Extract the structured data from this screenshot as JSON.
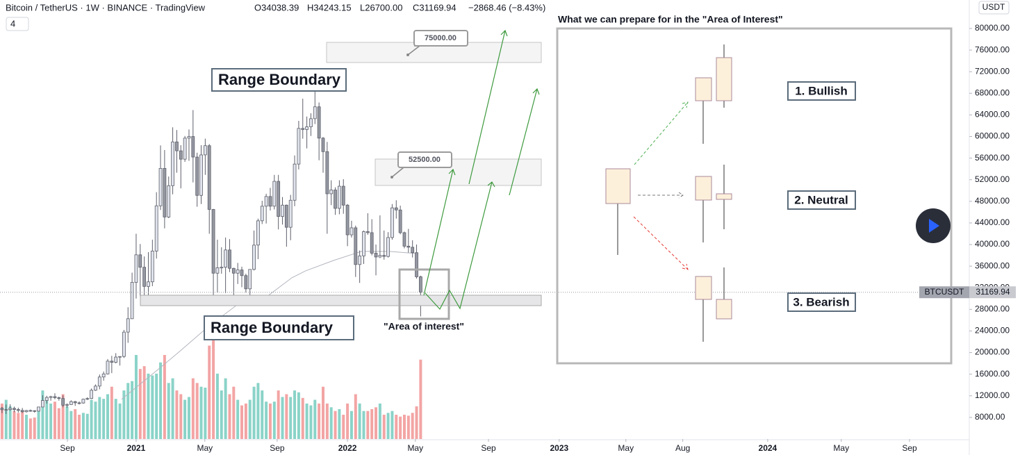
{
  "chart_data": {
    "type": "candlestick",
    "header": {
      "symbol": "Bitcoin / TetherUS · 1W · BINANCE · TradingView",
      "ohlc": [
        "O34038.39",
        "H34243.15",
        "L26700.00",
        "C31169.94"
      ],
      "change": "−2868.46 (−8.43%)",
      "indicators": "4"
    },
    "currency": "USDT",
    "symbol_label": "BTCUSDT",
    "colors": {
      "up": "#e0e3eb",
      "down": "#9598a1",
      "outline": "#5d606b",
      "volume_up": "#8ad3c8",
      "volume_down": "#f3a4a4",
      "ma": "#b2b5be"
    },
    "xlim": [
      0,
      238.5
    ],
    "xticks": [
      {
        "value": 16.6,
        "label": "Sep"
      },
      {
        "value": 33.5,
        "label": "2021"
      },
      {
        "value": 50.4,
        "label": "May"
      },
      {
        "value": 68.2,
        "label": "Sep"
      },
      {
        "value": 85.5,
        "label": "2022"
      },
      {
        "value": 102.2,
        "label": "May"
      },
      {
        "value": 120.2,
        "label": "Sep"
      },
      {
        "value": 137.6,
        "label": "2023"
      },
      {
        "value": 154,
        "label": "May"
      },
      {
        "value": 168,
        "label": "Aug"
      },
      {
        "value": 188.9,
        "label": "2024"
      },
      {
        "value": 207,
        "label": "May"
      },
      {
        "value": 223.8,
        "label": "Sep"
      }
    ],
    "ylim": [
      4000,
      85270
    ],
    "yticks": [
      {
        "value": 80000,
        "label": "80000.00"
      },
      {
        "value": 76000,
        "label": "76000.00"
      },
      {
        "value": 72000,
        "label": "72000.00"
      },
      {
        "value": 68000,
        "label": "68000.00"
      },
      {
        "value": 64000,
        "label": "64000.00"
      },
      {
        "value": 60000,
        "label": "60000.00"
      },
      {
        "value": 56000,
        "label": "56000.00"
      },
      {
        "value": 52000,
        "label": "52000.00"
      },
      {
        "value": 48000,
        "label": "48000.00"
      },
      {
        "value": 44000,
        "label": "44000.00"
      },
      {
        "value": 40000,
        "label": "40000.00"
      },
      {
        "value": 36000,
        "label": "36000.00"
      },
      {
        "value": 32000,
        "label": "32000.00"
      },
      {
        "value": 28000,
        "label": "28000.00"
      },
      {
        "value": 24000,
        "label": "24000.00"
      },
      {
        "value": 20000,
        "label": "20000.00"
      },
      {
        "value": 16000,
        "label": "16000.00"
      },
      {
        "value": 12000,
        "label": "12000.00"
      },
      {
        "value": 8000,
        "label": "8000.00"
      }
    ],
    "volume_lim": [
      0,
      4700
    ],
    "x": [
      0.5,
      1.5,
      2.5,
      3.5,
      4.5,
      5.5,
      6.5,
      7.5,
      8.5,
      9.5,
      10.5,
      11.5,
      12.5,
      13.5,
      14.5,
      15.5,
      16.5,
      17.5,
      18.5,
      19.5,
      20.5,
      21.5,
      22.5,
      23.5,
      24.5,
      25.5,
      26.5,
      27.5,
      28.5,
      29.5,
      30.5,
      31.5,
      32.5,
      33.5,
      34.5,
      35.5,
      36.5,
      37.5,
      38.5,
      39.5,
      40.5,
      41.5,
      42.5,
      43.5,
      44.5,
      45.5,
      46.5,
      47.5,
      48.5,
      49.5,
      50.5,
      51.5,
      52.5,
      53.5,
      54.5,
      55.5,
      56.5,
      57.5,
      58.5,
      59.5,
      60.5,
      61.5,
      62.5,
      63.5,
      64.5,
      65.5,
      66.5,
      67.5,
      68.5,
      69.5,
      70.5,
      71.5,
      72.5,
      73.5,
      74.5,
      75.5,
      76.5,
      77.5,
      78.5,
      79.5,
      80.5,
      81.5,
      82.5,
      83.5,
      84.5,
      85.5,
      86.5,
      87.5,
      88.5,
      89.5,
      90.5,
      91.5,
      92.5,
      93.5,
      94.5,
      95.5,
      96.5,
      97.5,
      98.5,
      99.5,
      100.5,
      101.5,
      102.5,
      103.5
    ],
    "open": [
      9700,
      9430,
      9450,
      9680,
      9460,
      9300,
      9050,
      9280,
      9240,
      9160,
      9930,
      11130,
      11700,
      11850,
      11650,
      11500,
      10260,
      10380,
      10930,
      10700,
      10670,
      11380,
      11500,
      13030,
      13800,
      15480,
      16050,
      18420,
      18200,
      19170,
      19280,
      23790,
      26270,
      33000,
      38100,
      35800,
      32250,
      33100,
      38800,
      47170,
      54100,
      45100,
      50900,
      59000,
      57350,
      55800,
      59700,
      60000,
      56200,
      49100,
      56600,
      58300,
      46500,
      34700,
      35700,
      35800,
      39000,
      35600,
      34700,
      35300,
      34250,
      31800,
      35400,
      39900,
      44400,
      47100,
      48900,
      47100,
      51700,
      45200,
      47300,
      43200,
      48200,
      54900,
      61500,
      61300,
      61800,
      63300,
      65500,
      59700,
      57200,
      49400,
      50100,
      46700,
      50800,
      47300,
      41800,
      43100,
      36300,
      37900,
      42400,
      42200,
      38400,
      37700,
      38000,
      37800,
      41300,
      46800,
      46400,
      42200,
      39700,
      39500,
      38500,
      34038.39
    ],
    "high": [
      9950,
      10380,
      10430,
      9990,
      9800,
      9750,
      9400,
      9460,
      9340,
      9980,
      12100,
      12000,
      12000,
      12470,
      11850,
      12090,
      10600,
      11170,
      11050,
      10950,
      11480,
      11720,
      13350,
      14100,
      15950,
      16500,
      18800,
      19400,
      19900,
      19300,
      24200,
      28400,
      34800,
      42000,
      40100,
      37800,
      38600,
      40900,
      49700,
      58350,
      57500,
      52600,
      61700,
      61200,
      58400,
      60100,
      61300,
      64900,
      57000,
      58400,
      59600,
      58600,
      46600,
      40900,
      39500,
      41300,
      41000,
      35700,
      36600,
      35900,
      34600,
      35400,
      42600,
      44800,
      48100,
      49400,
      50500,
      52900,
      52900,
      48800,
      47400,
      49200,
      56500,
      62900,
      67000,
      63700,
      64300,
      69000,
      66300,
      59900,
      59000,
      51900,
      50600,
      51900,
      52100,
      47500,
      44400,
      43500,
      38900,
      42600,
      45800,
      44700,
      40000,
      45400,
      42600,
      42300,
      47500,
      48200,
      47200,
      42400,
      42900,
      40800,
      40000,
      34243.15
    ],
    "low": [
      8800,
      8630,
      9250,
      8970,
      8900,
      8830,
      8900,
      9050,
      8900,
      9100,
      9900,
      10550,
      11100,
      11350,
      11100,
      9880,
      9820,
      10330,
      10130,
      10400,
      10530,
      11200,
      11400,
      12900,
      13200,
      14800,
      15950,
      16200,
      18000,
      17600,
      19000,
      21800,
      26200,
      30000,
      30400,
      28800,
      29200,
      32300,
      37400,
      46400,
      43000,
      44900,
      49300,
      53300,
      50400,
      55300,
      55500,
      51500,
      47000,
      47500,
      52900,
      42000,
      30000,
      31100,
      34600,
      31000,
      34900,
      28800,
      32700,
      32100,
      31100,
      29300,
      35200,
      37300,
      43800,
      43900,
      46300,
      46500,
      42800,
      43700,
      39600,
      40800,
      47100,
      53900,
      59600,
      57800,
      60100,
      62300,
      55600,
      53300,
      42000,
      47300,
      45500,
      45600,
      45700,
      39700,
      41300,
      34000,
      32900,
      36400,
      41800,
      38000,
      34300,
      37500,
      37200,
      37600,
      40900,
      44800,
      41900,
      39300,
      38500,
      37600,
      33700,
      26700
    ],
    "close": [
      9430,
      9450,
      9680,
      9460,
      9300,
      9050,
      9280,
      9240,
      9160,
      9930,
      11130,
      11700,
      11850,
      11650,
      11500,
      10260,
      10380,
      10930,
      10700,
      10670,
      11380,
      11500,
      13030,
      13800,
      15480,
      16050,
      18420,
      18200,
      19170,
      19280,
      23790,
      26270,
      33000,
      38100,
      35800,
      32250,
      33100,
      38800,
      47170,
      54100,
      45100,
      50900,
      59000,
      57350,
      55800,
      59700,
      60000,
      56200,
      49100,
      56600,
      58300,
      46500,
      34700,
      35700,
      35800,
      39000,
      35600,
      34700,
      35300,
      34250,
      31800,
      35400,
      39900,
      44400,
      47100,
      48900,
      47100,
      51700,
      45200,
      47300,
      43200,
      48200,
      54900,
      61500,
      61300,
      61800,
      63300,
      65500,
      59700,
      57200,
      49400,
      50100,
      46700,
      50800,
      47300,
      41800,
      43100,
      36300,
      37900,
      42400,
      42200,
      38400,
      37700,
      38000,
      37800,
      41300,
      46800,
      46400,
      42200,
      39700,
      39500,
      38500,
      34038.39,
      31169.94
    ],
    "volume": [
      380,
      420,
      350,
      300,
      280,
      290,
      260,
      220,
      230,
      310,
      520,
      440,
      380,
      400,
      330,
      480,
      350,
      300,
      320,
      260,
      280,
      270,
      420,
      400,
      450,
      430,
      480,
      560,
      430,
      380,
      520,
      600,
      620,
      900,
      750,
      780,
      700,
      680,
      700,
      820,
      900,
      600,
      650,
      520,
      480,
      420,
      450,
      650,
      600,
      560,
      550,
      1000,
      1200,
      700,
      520,
      650,
      480,
      560,
      420,
      360,
      380,
      420,
      560,
      600,
      520,
      400,
      380,
      400,
      520,
      450,
      480,
      450,
      520,
      500,
      440,
      380,
      360,
      420,
      380,
      560,
      380,
      340,
      300,
      320,
      260,
      380,
      300,
      480,
      380,
      300,
      300,
      320,
      340,
      380,
      260,
      280,
      300,
      260,
      240,
      260,
      250,
      280,
      350,
      850
    ],
    "ma": {
      "x": [
        29.9,
        39.3,
        44.4,
        51.3,
        58.1,
        65,
        71.8,
        75.2,
        82.1,
        88.9,
        95.7,
        102.6
      ],
      "values": [
        11340,
        17130,
        20340,
        24840,
        28700,
        29990,
        33850,
        35130,
        37060,
        38730,
        38730,
        38340
      ]
    },
    "annotations": {
      "range_top": "Range Boundary",
      "range_bottom": "Range Boundary",
      "target_high": "75000.00",
      "target_mid": "52500.00",
      "area": "\"Area of interest\"",
      "panel_title": "What we can prepare for in the \"Area of Interest\"",
      "bullish": "1. Bullish",
      "neutral": "2. Neutral",
      "bearish": "3. Bearish"
    }
  }
}
